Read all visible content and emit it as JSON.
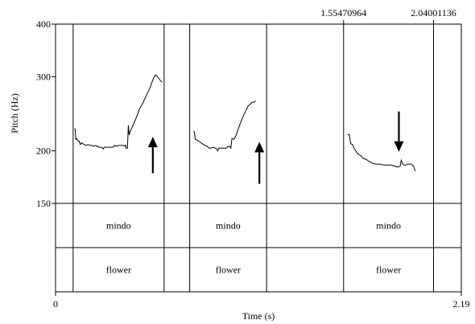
{
  "chart_data": {
    "type": "line",
    "xlabel": "Time (s)",
    "ylabel": "Pitch (Hz)",
    "xlim": [
      0,
      2.19
    ],
    "ylim": [
      150,
      400
    ],
    "y_scale": "log",
    "x_tick_labels": [
      "0",
      "2.19"
    ],
    "y_ticks": [
      {
        "value": 150,
        "label": "150"
      },
      {
        "value": 200,
        "label": "200"
      },
      {
        "value": 300,
        "label": "300"
      },
      {
        "value": 400,
        "label": "400"
      }
    ],
    "top_time_labels": [
      {
        "value": 1.55470964,
        "label": "1.55470964"
      },
      {
        "value": 2.04001136,
        "label": "2.04001136"
      }
    ],
    "boundaries": [
      0.095,
      0.586,
      0.724,
      1.139,
      1.5547,
      2.04
    ],
    "tiers": [
      {
        "segments": [
          {
            "start": 0.095,
            "end": 0.586,
            "label": "mindo"
          },
          {
            "start": 0.724,
            "end": 1.139,
            "label": "mindo"
          },
          {
            "start": 1.5547,
            "end": 2.04,
            "label": "mindo"
          }
        ]
      },
      {
        "segments": [
          {
            "start": 0.095,
            "end": 0.586,
            "label": "flower"
          },
          {
            "start": 0.724,
            "end": 1.139,
            "label": "flower"
          },
          {
            "start": 1.5547,
            "end": 2.04,
            "label": "flower"
          }
        ]
      }
    ],
    "series": [
      {
        "points": [
          [
            0.103,
            226
          ],
          [
            0.106,
            225
          ],
          [
            0.109,
            213
          ],
          [
            0.115,
            214
          ],
          [
            0.12,
            211
          ],
          [
            0.127,
            211
          ],
          [
            0.133,
            207
          ],
          [
            0.14,
            209
          ],
          [
            0.147,
            208
          ],
          [
            0.155,
            207
          ],
          [
            0.165,
            206
          ],
          [
            0.175,
            207
          ],
          [
            0.185,
            206
          ],
          [
            0.195,
            206
          ],
          [
            0.205,
            205
          ],
          [
            0.215,
            206
          ],
          [
            0.225,
            205
          ],
          [
            0.235,
            204
          ],
          [
            0.248,
            204
          ],
          [
            0.258,
            202
          ],
          [
            0.262,
            204
          ],
          [
            0.27,
            204
          ],
          [
            0.28,
            204
          ],
          [
            0.29,
            204
          ],
          [
            0.3,
            204
          ],
          [
            0.31,
            204
          ],
          [
            0.32,
            206
          ],
          [
            0.33,
            205
          ],
          [
            0.34,
            206
          ],
          [
            0.35,
            206
          ],
          [
            0.36,
            206
          ],
          [
            0.37,
            206
          ],
          [
            0.375,
            205
          ],
          [
            0.378,
            206
          ],
          [
            0.38,
            203
          ],
          [
            0.388,
            203
          ],
          [
            0.393,
            230
          ],
          [
            0.397,
            218
          ],
          [
            0.402,
            222
          ],
          [
            0.41,
            226
          ],
          [
            0.422,
            232
          ],
          [
            0.438,
            241
          ],
          [
            0.452,
            251
          ],
          [
            0.466,
            257
          ],
          [
            0.48,
            265
          ],
          [
            0.494,
            273
          ],
          [
            0.508,
            281
          ],
          [
            0.52,
            291
          ],
          [
            0.531,
            299
          ],
          [
            0.54,
            303
          ],
          [
            0.55,
            300
          ],
          [
            0.56,
            296
          ],
          [
            0.568,
            293
          ],
          [
            0.575,
            291
          ]
        ]
      },
      {
        "points": [
          [
            0.744,
            222
          ],
          [
            0.749,
            222
          ],
          [
            0.754,
            213
          ],
          [
            0.765,
            212
          ],
          [
            0.778,
            210
          ],
          [
            0.792,
            208
          ],
          [
            0.806,
            206
          ],
          [
            0.818,
            205
          ],
          [
            0.828,
            203
          ],
          [
            0.838,
            203
          ],
          [
            0.85,
            204
          ],
          [
            0.862,
            203
          ],
          [
            0.87,
            202
          ],
          [
            0.875,
            200
          ],
          [
            0.882,
            203
          ],
          [
            0.89,
            203
          ],
          [
            0.9,
            203
          ],
          [
            0.912,
            203
          ],
          [
            0.922,
            203
          ],
          [
            0.932,
            205
          ],
          [
            0.94,
            205
          ],
          [
            0.946,
            203
          ],
          [
            0.952,
            214
          ],
          [
            0.962,
            213
          ],
          [
            0.975,
            218
          ],
          [
            0.99,
            228
          ],
          [
            1.003,
            236
          ],
          [
            1.015,
            243
          ],
          [
            1.027,
            249
          ],
          [
            1.038,
            255
          ],
          [
            1.05,
            258
          ],
          [
            1.062,
            261
          ],
          [
            1.072,
            261
          ],
          [
            1.08,
            263
          ]
        ]
      },
      {
        "points": [
          [
            1.578,
            218
          ],
          [
            1.585,
            219
          ],
          [
            1.593,
            208
          ],
          [
            1.603,
            207
          ],
          [
            1.613,
            202
          ],
          [
            1.623,
            199
          ],
          [
            1.635,
            196
          ],
          [
            1.647,
            195
          ],
          [
            1.66,
            192
          ],
          [
            1.675,
            191
          ],
          [
            1.69,
            189
          ],
          [
            1.71,
            187
          ],
          [
            1.73,
            186
          ],
          [
            1.75,
            186
          ],
          [
            1.77,
            185
          ],
          [
            1.79,
            185
          ],
          [
            1.81,
            185
          ],
          [
            1.83,
            184
          ],
          [
            1.845,
            183
          ],
          [
            1.86,
            184
          ],
          [
            1.866,
            190
          ],
          [
            1.872,
            187
          ],
          [
            1.878,
            185
          ],
          [
            1.89,
            185
          ],
          [
            1.9,
            186
          ],
          [
            1.91,
            186
          ],
          [
            1.92,
            186
          ],
          [
            1.932,
            184
          ],
          [
            1.941,
            179
          ]
        ]
      }
    ],
    "annotations": [
      {
        "type": "arrow",
        "direction": "up",
        "x": 0.525,
        "y_from": 177,
        "y_to": 216
      },
      {
        "type": "arrow",
        "direction": "up",
        "x": 1.1,
        "y_from": 167,
        "y_to": 210
      },
      {
        "type": "arrow",
        "direction": "down",
        "x": 1.853,
        "y_from": 248,
        "y_to": 199
      }
    ]
  }
}
